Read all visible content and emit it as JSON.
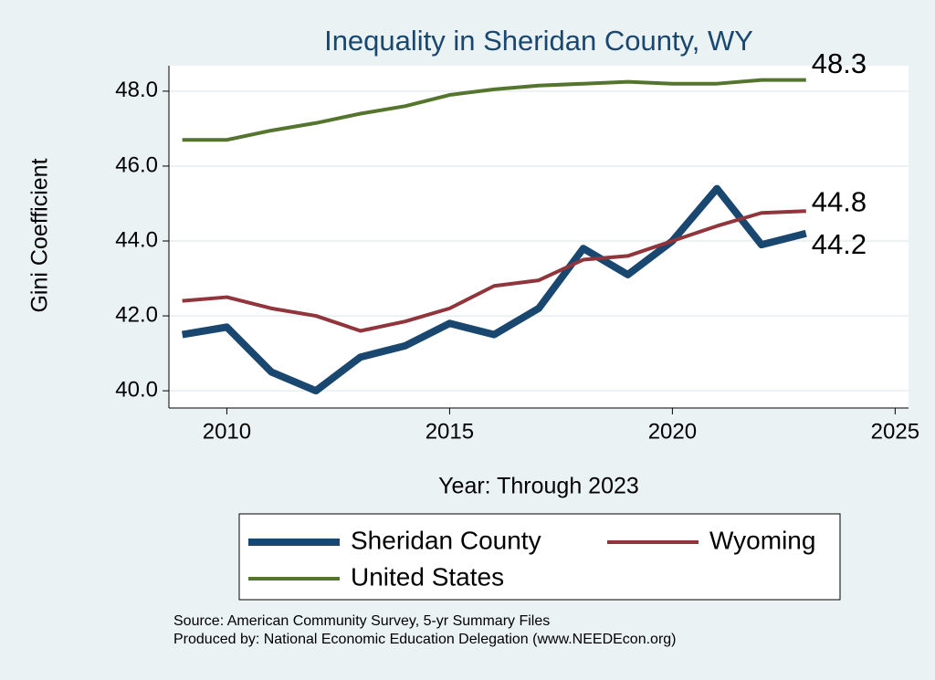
{
  "chart_data": {
    "type": "line",
    "title": "Inequality in Sheridan County, WY",
    "x_label": "Year: Through 2023",
    "y_label": "Gini Coefficient",
    "x": [
      2009,
      2010,
      2011,
      2012,
      2013,
      2014,
      2015,
      2016,
      2017,
      2018,
      2019,
      2020,
      2021,
      2022,
      2023
    ],
    "series": [
      {
        "name": "Sheridan County",
        "color": "#1a476f",
        "values": [
          41.5,
          41.7,
          40.5,
          40.0,
          40.9,
          41.2,
          41.8,
          41.5,
          42.2,
          43.8,
          43.1,
          44.0,
          45.4,
          43.9,
          44.2
        ]
      },
      {
        "name": "Wyoming",
        "color": "#90353b",
        "values": [
          42.4,
          42.5,
          42.2,
          42.0,
          41.6,
          41.85,
          42.2,
          42.8,
          42.95,
          43.5,
          43.6,
          44.0,
          44.4,
          44.75,
          44.8
        ]
      },
      {
        "name": "United States",
        "color": "#55752f",
        "values": [
          46.7,
          46.7,
          46.95,
          47.15,
          47.4,
          47.6,
          47.9,
          48.05,
          48.15,
          48.2,
          48.25,
          48.2,
          48.2,
          48.3,
          48.3
        ]
      }
    ],
    "xlim": [
      2008.7,
      2025.3
    ],
    "ylim": [
      39.54,
      48.68
    ],
    "xticks": [
      2010,
      2015,
      2020,
      2025
    ],
    "yticks": [
      {
        "value": 40,
        "label": "40.0"
      },
      {
        "value": 42,
        "label": "42.0"
      },
      {
        "value": 44,
        "label": "44.0"
      },
      {
        "value": 46,
        "label": "46.0"
      },
      {
        "value": 48,
        "label": "48.0"
      }
    ],
    "grid": true,
    "source": [
      "Source: American Community Survey, 5-yr Summary Files",
      "Produced by: National Economic Education Delegation (www.NEEDEcon.org)"
    ]
  }
}
